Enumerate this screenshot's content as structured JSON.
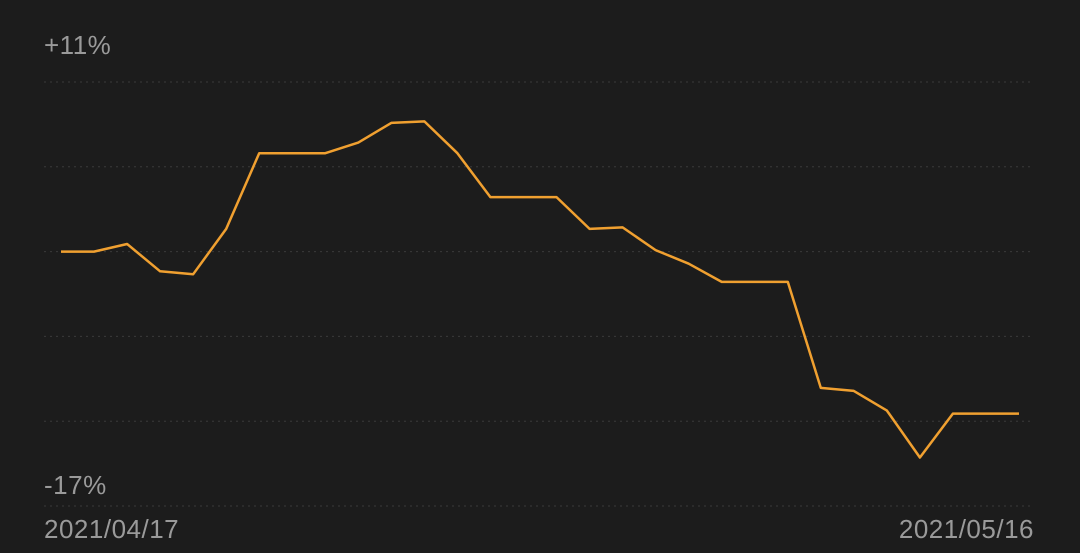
{
  "colors": {
    "background": "#1c1c1c",
    "line": "#f0a030",
    "grid": "#3a3a3a",
    "text": "#9a9a9a"
  },
  "chart_data": {
    "type": "line",
    "x_start_label": "2021/04/17",
    "x_end_label": "2021/05/16",
    "y_max_label": "+11%",
    "y_min_label": "-17%",
    "ylim": [
      -17,
      11
    ],
    "grid": true,
    "x": [
      "2021/04/17",
      "2021/04/18",
      "2021/04/19",
      "2021/04/20",
      "2021/04/21",
      "2021/04/22",
      "2021/04/23",
      "2021/04/24",
      "2021/04/25",
      "2021/04/26",
      "2021/04/27",
      "2021/04/28",
      "2021/04/29",
      "2021/04/30",
      "2021/05/01",
      "2021/05/02",
      "2021/05/03",
      "2021/05/04",
      "2021/05/05",
      "2021/05/06",
      "2021/05/07",
      "2021/05/08",
      "2021/05/09",
      "2021/05/10",
      "2021/05/11",
      "2021/05/12",
      "2021/05/13",
      "2021/05/14",
      "2021/05/15",
      "2021/05/16"
    ],
    "series": [
      {
        "values": [
          -0.2,
          -0.2,
          0.3,
          -1.5,
          -1.7,
          1.3,
          6.3,
          6.3,
          6.3,
          7.0,
          8.3,
          8.4,
          6.3,
          3.4,
          3.4,
          3.4,
          1.3,
          1.4,
          -0.1,
          -1.0,
          -2.2,
          -2.2,
          -2.2,
          -9.2,
          -9.4,
          -10.7,
          -13.8,
          -10.9,
          -10.9,
          -10.9
        ]
      }
    ]
  }
}
